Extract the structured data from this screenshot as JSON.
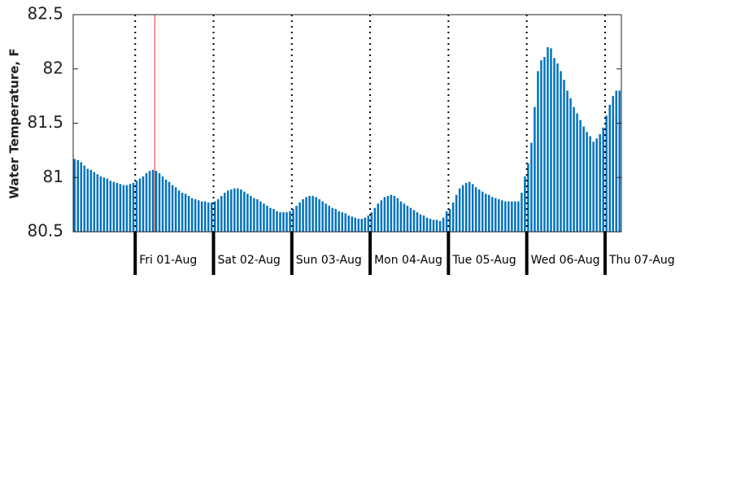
{
  "chart_data": {
    "type": "bar",
    "y_label": "Water Temperature, F",
    "categories": [
      null,
      null,
      null,
      null,
      null,
      null,
      null,
      null,
      null,
      null,
      null,
      null,
      null,
      null,
      null,
      null,
      null,
      null,
      null,
      "Fri 01-Aug",
      null,
      null,
      null,
      null,
      null,
      null,
      null,
      null,
      null,
      null,
      null,
      null,
      null,
      null,
      null,
      null,
      null,
      null,
      null,
      null,
      null,
      null,
      null,
      "Sat 02-Aug",
      null,
      null,
      null,
      null,
      null,
      null,
      null,
      null,
      null,
      null,
      null,
      null,
      null,
      null,
      null,
      null,
      null,
      null,
      null,
      null,
      null,
      null,
      null,
      "Sun 03-Aug",
      null,
      null,
      null,
      null,
      null,
      null,
      null,
      null,
      null,
      null,
      null,
      null,
      null,
      null,
      null,
      null,
      null,
      null,
      null,
      null,
      null,
      null,
      null,
      "Mon 04-Aug",
      null,
      null,
      null,
      null,
      null,
      null,
      null,
      null,
      null,
      null,
      null,
      null,
      null,
      null,
      null,
      null,
      null,
      null,
      null,
      null,
      null,
      null,
      null,
      "Tue 05-Aug",
      null,
      null,
      null,
      null,
      null,
      null,
      null,
      null,
      null,
      null,
      null,
      null,
      null,
      null,
      null,
      null,
      null,
      null,
      null,
      null,
      null,
      null,
      null,
      "Wed 06-Aug",
      null,
      null,
      null,
      null,
      null,
      null,
      null,
      null,
      null,
      null,
      null,
      null,
      null,
      null,
      null,
      null,
      null,
      null,
      null,
      null,
      null,
      null,
      null,
      "Thu 07-Aug",
      null,
      null,
      null,
      null
    ],
    "values": [
      81.17,
      81.16,
      81.14,
      81.11,
      81.08,
      81.07,
      81.05,
      81.03,
      81.01,
      81.0,
      80.99,
      80.97,
      80.96,
      80.95,
      80.94,
      80.93,
      80.93,
      80.94,
      80.95,
      80.97,
      80.99,
      81.01,
      81.04,
      81.06,
      81.07,
      81.06,
      81.04,
      81.01,
      80.98,
      80.96,
      80.93,
      80.91,
      80.88,
      80.86,
      80.85,
      80.83,
      80.81,
      80.8,
      80.79,
      80.78,
      80.78,
      80.77,
      80.77,
      80.78,
      80.8,
      80.83,
      80.86,
      80.88,
      80.89,
      80.9,
      80.9,
      80.89,
      80.87,
      80.85,
      80.83,
      80.81,
      80.8,
      80.78,
      80.76,
      80.74,
      80.72,
      80.71,
      80.69,
      80.68,
      80.68,
      80.68,
      80.69,
      80.71,
      80.74,
      80.77,
      80.8,
      80.82,
      80.83,
      80.83,
      80.82,
      80.8,
      80.78,
      80.76,
      80.74,
      80.72,
      80.71,
      80.69,
      80.68,
      80.67,
      80.65,
      80.64,
      80.63,
      80.62,
      80.62,
      80.63,
      80.65,
      80.68,
      80.72,
      80.76,
      80.79,
      80.82,
      80.83,
      80.84,
      80.83,
      80.81,
      80.78,
      80.76,
      80.74,
      80.72,
      80.7,
      80.68,
      80.66,
      80.65,
      80.63,
      80.62,
      80.61,
      80.61,
      80.6,
      80.63,
      80.69,
      80.71,
      80.77,
      80.84,
      80.9,
      80.93,
      80.95,
      80.96,
      80.94,
      80.91,
      80.89,
      80.87,
      80.85,
      80.84,
      80.82,
      80.81,
      80.8,
      80.79,
      80.78,
      80.78,
      80.78,
      80.78,
      80.78,
      80.86,
      81.01,
      81.13,
      81.32,
      81.65,
      81.98,
      82.08,
      82.11,
      82.2,
      82.19,
      82.1,
      82.05,
      81.98,
      81.9,
      81.8,
      81.73,
      81.65,
      81.59,
      81.53,
      81.47,
      81.42,
      81.38,
      81.33,
      81.36,
      81.4,
      81.46,
      81.57,
      81.67,
      81.75,
      81.8,
      81.8
    ],
    "color": "#0072bd",
    "ylim": [
      80.5,
      82.5
    ],
    "yticks": [
      80.5,
      81,
      81.5,
      82,
      82.5
    ],
    "marker_index": 25,
    "marker_color": "#e03030"
  }
}
